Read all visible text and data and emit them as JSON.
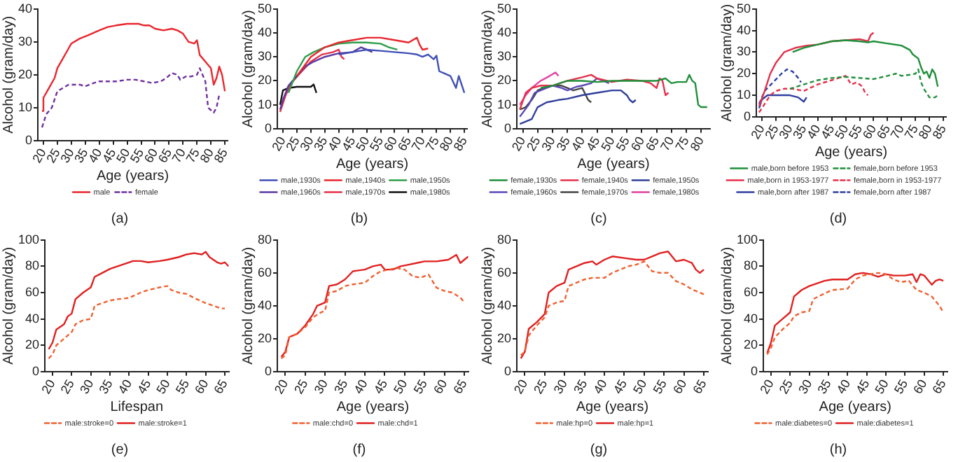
{
  "chart_data": [
    {
      "type": "line",
      "xlabel": "Age (years)",
      "ylabel": "Alcohol (gram/day)",
      "xlim": [
        18,
        86
      ],
      "xticks": [
        20,
        25,
        30,
        35,
        40,
        45,
        50,
        55,
        60,
        65,
        70,
        75,
        80,
        85
      ],
      "ylim": [
        0,
        40
      ],
      "yticks": [
        0,
        10,
        20,
        30,
        40
      ],
      "legend": "bottom",
      "annotations": [
        "(a)"
      ],
      "series": [
        {
          "name": "male",
          "color": "#e8262d",
          "line_style": "solid",
          "x": [
            19.5,
            20,
            22,
            24,
            25,
            27,
            29,
            30,
            33,
            36,
            40,
            43,
            46,
            50,
            54,
            56,
            58,
            60,
            63,
            66,
            68,
            70,
            72,
            74,
            75,
            76,
            78,
            80,
            81,
            82,
            83,
            84,
            85
          ],
          "values": [
            9,
            13,
            16,
            19,
            22,
            25,
            28,
            29.5,
            31,
            32,
            33.5,
            34.5,
            35,
            35.5,
            35.5,
            35,
            35,
            34,
            33.5,
            34,
            33.5,
            32.5,
            30,
            29.5,
            30.5,
            26,
            24,
            22,
            17,
            19,
            22.5,
            20,
            15
          ]
        },
        {
          "name": "female",
          "color": "#7030a0",
          "line_style": "dashed",
          "x": [
            19.5,
            21,
            23,
            25,
            27,
            29,
            31,
            33,
            35,
            38,
            40,
            43,
            46,
            50,
            53,
            56,
            59,
            62,
            64,
            66,
            68,
            69,
            71,
            73,
            75,
            76,
            77,
            78,
            79,
            81,
            82,
            83
          ],
          "values": [
            4,
            8,
            10,
            15,
            16,
            17,
            17,
            17,
            16.5,
            17.5,
            18,
            18,
            18,
            18.5,
            18.5,
            18,
            17.5,
            18,
            19,
            20.5,
            20,
            18.5,
            19.5,
            19.5,
            20,
            22,
            20,
            18,
            10,
            8.5,
            10,
            14
          ]
        }
      ]
    },
    {
      "type": "line",
      "xlabel": "Age (years)",
      "ylabel": "Alcohol (gram/day)",
      "xlim": [
        18,
        86
      ],
      "xticks": [
        20,
        25,
        30,
        35,
        40,
        45,
        50,
        55,
        60,
        65,
        70,
        75,
        80,
        85
      ],
      "ylim": [
        0,
        50
      ],
      "yticks": [
        0,
        10,
        20,
        30,
        40,
        50
      ],
      "legend": "bottom",
      "annotations": [
        "(b)"
      ],
      "series": [
        {
          "name": "male,1930s",
          "color": "#3f4fb5",
          "line_style": "solid",
          "x": [
            40,
            45,
            50,
            55,
            60,
            65,
            68,
            70,
            72,
            74,
            75,
            76,
            78,
            80,
            82,
            83,
            85
          ],
          "values": [
            31,
            32,
            33,
            32.5,
            32,
            31.5,
            31,
            30,
            31,
            29,
            30.5,
            24,
            23,
            22,
            17,
            22,
            15
          ]
        },
        {
          "name": "male,1940s",
          "color": "#e8262d",
          "line_style": "solid",
          "x": [
            25,
            30,
            35,
            40,
            45,
            50,
            55,
            60,
            65,
            68,
            69,
            70,
            72
          ],
          "values": [
            22,
            30,
            34,
            36,
            37,
            38,
            38,
            37,
            36,
            38,
            35,
            33,
            33.5
          ]
        },
        {
          "name": "male,1950s",
          "color": "#2e9e4a",
          "line_style": "solid",
          "x": [
            22,
            25,
            28,
            31,
            35,
            40,
            45,
            50,
            55,
            58,
            61
          ],
          "values": [
            15,
            24,
            30,
            32,
            34,
            35.5,
            36,
            36,
            35.5,
            34,
            33
          ]
        },
        {
          "name": "male,1960s",
          "color": "#5b3aa0",
          "line_style": "solid",
          "x": [
            19,
            20,
            22,
            25,
            28,
            31,
            35,
            40,
            45,
            48,
            50,
            52
          ],
          "values": [
            8,
            12,
            18,
            22,
            26,
            28,
            30,
            31.5,
            32,
            34,
            33,
            32
          ]
        },
        {
          "name": "male,1970s",
          "color": "#e5304a",
          "line_style": "solid",
          "x": [
            19,
            21,
            23,
            26,
            30,
            34,
            38,
            40,
            41,
            42
          ],
          "values": [
            7,
            14,
            19,
            23,
            28,
            31,
            32,
            33,
            30,
            29
          ]
        },
        {
          "name": "male,1980s",
          "color": "#111111",
          "line_style": "solid",
          "x": [
            19,
            20,
            22,
            25,
            28,
            30,
            31,
            32
          ],
          "values": [
            10,
            16,
            17,
            17.5,
            17.5,
            17.5,
            18.5,
            15
          ]
        }
      ]
    },
    {
      "type": "line",
      "xlabel": "Age (years)",
      "ylabel": "Alcohol (gram/day)",
      "xlim": [
        18,
        83
      ],
      "xticks": [
        20,
        25,
        30,
        35,
        40,
        45,
        50,
        55,
        60,
        65,
        70,
        75,
        80
      ],
      "ylim": [
        0,
        50
      ],
      "yticks": [
        0,
        10,
        20,
        30,
        40,
        50
      ],
      "legend": "bottom",
      "annotations": [
        "(c)"
      ],
      "series": [
        {
          "name": "female,1930s",
          "color": "#1f8f3a",
          "line_style": "solid",
          "x": [
            26,
            30,
            35,
            40,
            45,
            50,
            55,
            60,
            65,
            68,
            70,
            72,
            75,
            76,
            77,
            78,
            79,
            80,
            82
          ],
          "values": [
            17,
            18,
            20,
            20,
            19.5,
            20,
            20,
            20,
            20,
            21,
            19,
            19.5,
            19.5,
            22.5,
            20,
            19,
            10,
            9,
            9
          ]
        },
        {
          "name": "female,1940s",
          "color": "#e5304a",
          "line_style": "solid",
          "x": [
            19,
            21,
            23,
            26,
            30,
            35,
            40,
            43,
            45,
            50,
            55,
            60,
            63,
            65,
            66,
            67,
            68,
            69
          ],
          "values": [
            8,
            15,
            17,
            18,
            18,
            20,
            21.5,
            22.5,
            21,
            19.5,
            20.5,
            20,
            19,
            17,
            21,
            20,
            14,
            15
          ]
        },
        {
          "name": "female,1950s",
          "color": "#2f3f9a",
          "line_style": "solid",
          "x": [
            19,
            21,
            23,
            25,
            28,
            32,
            35,
            40,
            45,
            50,
            53,
            55,
            56,
            57,
            58
          ],
          "values": [
            2,
            3,
            4,
            9,
            11,
            12,
            12.5,
            14,
            15,
            16,
            16,
            14,
            12,
            11,
            12
          ]
        },
        {
          "name": "female,1960s",
          "color": "#5a4ab8",
          "line_style": "solid",
          "x": [
            19,
            22,
            24,
            27,
            30,
            33,
            35,
            38,
            40,
            43,
            45,
            47,
            49
          ],
          "values": [
            5,
            10,
            15,
            16.5,
            18,
            17,
            16,
            17.5,
            18,
            19,
            21,
            20,
            19
          ]
        },
        {
          "name": "female,1970s",
          "color": "#444444",
          "line_style": "solid",
          "x": [
            19,
            21,
            23,
            25,
            27,
            30,
            33,
            35,
            37,
            40,
            42,
            43
          ],
          "values": [
            8,
            9,
            12,
            16,
            17,
            18,
            18,
            17,
            16,
            17,
            12,
            11
          ]
        },
        {
          "name": "female,1980s",
          "color": "#e040a0",
          "line_style": "solid",
          "x": [
            19,
            21,
            23,
            26,
            29,
            31,
            32
          ],
          "values": [
            10,
            14,
            17,
            20,
            22,
            23.5,
            22
          ]
        }
      ]
    },
    {
      "type": "line",
      "xlabel": "Age (years)",
      "ylabel": "Alcohol (gram/day)",
      "xlim": [
        18,
        86
      ],
      "xticks": [
        20,
        25,
        30,
        35,
        40,
        45,
        50,
        55,
        60,
        65,
        70,
        75,
        80,
        85
      ],
      "ylim": [
        0,
        50
      ],
      "yticks": [
        0,
        10,
        20,
        30,
        40,
        50
      ],
      "legend": "bottom",
      "annotations": [
        "(d)"
      ],
      "series": [
        {
          "name": "male,born before 1953",
          "color": "#1f8f3a",
          "line_style": "solid",
          "x": [
            31,
            35,
            40,
            45,
            50,
            55,
            58,
            60,
            65,
            70,
            73,
            74,
            76,
            77,
            78,
            79,
            80,
            81,
            82,
            83
          ],
          "values": [
            30,
            32,
            33.5,
            35,
            35.5,
            35,
            34.5,
            35,
            34,
            33,
            31,
            29,
            27,
            23,
            20,
            21,
            18,
            22,
            20,
            14
          ]
        },
        {
          "name": "female,born before 1953",
          "color": "#1f8f3a",
          "line_style": "dashed",
          "x": [
            30,
            35,
            40,
            45,
            50,
            55,
            60,
            65,
            68,
            70,
            73,
            75,
            76,
            77,
            78,
            80,
            82,
            83
          ],
          "values": [
            13,
            15,
            17,
            18,
            18.5,
            18,
            17.5,
            19,
            20,
            19,
            19.5,
            20,
            22,
            16,
            13,
            9,
            9,
            10
          ]
        },
        {
          "name": "male,born in 1953-1977",
          "color": "#e5304a",
          "line_style": "solid",
          "x": [
            19,
            21,
            23,
            25,
            28,
            32,
            36,
            40,
            45,
            50,
            55,
            58,
            59,
            60
          ],
          "values": [
            5,
            12,
            20,
            25,
            30,
            32,
            33,
            33.5,
            35,
            35.5,
            36,
            35,
            38,
            39
          ]
        },
        {
          "name": "female,born in 1953-1977",
          "color": "#e5304a",
          "line_style": "dashed",
          "x": [
            19,
            21,
            23,
            25,
            28,
            31,
            35,
            40,
            45,
            50,
            52,
            54,
            56,
            57,
            58
          ],
          "values": [
            2,
            6,
            10,
            12,
            13,
            13,
            12,
            15,
            17,
            19,
            15,
            16,
            14,
            11,
            10
          ]
        },
        {
          "name": "male,born after 1987",
          "color": "#2f3fa0",
          "line_style": "solid",
          "x": [
            19,
            20,
            22,
            26,
            30,
            33,
            35,
            36
          ],
          "values": [
            4,
            8,
            10,
            10,
            10,
            9,
            7,
            9
          ]
        },
        {
          "name": "female,born after 1987",
          "color": "#2f3fa0",
          "line_style": "dashed",
          "x": [
            19,
            21,
            24,
            27,
            29,
            31,
            33,
            34
          ],
          "values": [
            6,
            12,
            16,
            20,
            22,
            21,
            18,
            16
          ]
        }
      ]
    },
    {
      "type": "line",
      "xlabel": "Lifespan",
      "ylabel": "Alcohol (gram/day)",
      "xlim": [
        18,
        66
      ],
      "xticks": [
        20,
        25,
        30,
        35,
        40,
        45,
        50,
        55,
        60,
        65
      ],
      "ylim": [
        0,
        100
      ],
      "yticks": [
        0,
        20,
        40,
        60,
        80,
        100
      ],
      "legend": "bottom",
      "annotations": [
        "(e)"
      ],
      "series": [
        {
          "name": "male:stroke=0",
          "color": "#f06030",
          "line_style": "dashed",
          "x": [
            19,
            20,
            21,
            23,
            25,
            26,
            28,
            30,
            31,
            33,
            35,
            37,
            40,
            43,
            45,
            48,
            50,
            51,
            53,
            55,
            57,
            60,
            62,
            64,
            65
          ],
          "values": [
            10,
            13,
            20,
            25,
            30,
            36,
            39,
            40,
            50,
            52,
            54,
            55,
            56,
            60,
            62,
            64,
            65,
            62,
            60,
            59,
            56,
            52,
            50,
            48,
            48
          ]
        },
        {
          "name": "male:stroke=1",
          "color": "#e02020",
          "line_style": "solid",
          "x": [
            19,
            20,
            21,
            23,
            24,
            25,
            26,
            28,
            30,
            31,
            33,
            35,
            37,
            40,
            41,
            43,
            45,
            48,
            50,
            53,
            55,
            57,
            59,
            60,
            61,
            63,
            64,
            65,
            66
          ],
          "values": [
            17,
            22,
            32,
            36,
            42,
            44,
            55,
            60,
            64,
            72,
            75,
            78,
            80,
            83,
            84,
            84,
            83,
            84,
            85,
            87,
            89,
            90,
            89,
            91,
            87,
            83,
            82,
            83,
            80
          ]
        }
      ]
    },
    {
      "type": "line",
      "xlabel": "Age (years)",
      "ylabel": "Alcohol (gram/day)",
      "xlim": [
        18,
        66
      ],
      "xticks": [
        20,
        25,
        30,
        35,
        40,
        45,
        50,
        55,
        60,
        65
      ],
      "ylim": [
        0,
        80
      ],
      "yticks": [
        0,
        20,
        40,
        60,
        80
      ],
      "legend": "bottom",
      "annotations": [
        "(f)"
      ],
      "series": [
        {
          "name": "male:chd=0",
          "color": "#f06030",
          "line_style": "dashed",
          "x": [
            19,
            20,
            21,
            23,
            25,
            27,
            29,
            30,
            31,
            33,
            35,
            37,
            40,
            42,
            44,
            46,
            48,
            50,
            52,
            54,
            56,
            58,
            60,
            62,
            64,
            65
          ],
          "values": [
            8,
            10,
            21,
            23,
            27,
            33,
            36,
            37,
            48,
            49,
            52,
            53,
            54,
            58,
            61,
            62,
            63,
            62,
            58,
            57,
            59,
            51,
            49,
            48,
            45,
            42
          ]
        },
        {
          "name": "male:chd=1",
          "color": "#e02020",
          "line_style": "solid",
          "x": [
            19,
            20,
            21,
            23,
            25,
            27,
            28,
            30,
            31,
            33,
            35,
            37,
            40,
            42,
            44,
            45,
            47,
            49,
            51,
            53,
            55,
            58,
            61,
            63,
            64,
            65,
            66
          ],
          "values": [
            9,
            12,
            21,
            23,
            28,
            35,
            40,
            42,
            52,
            53,
            56,
            61,
            62,
            64,
            65,
            62,
            62,
            64,
            65,
            66,
            67,
            67,
            68,
            71,
            66,
            68,
            70
          ]
        }
      ]
    },
    {
      "type": "line",
      "xlabel": "Age (years)",
      "ylabel": "Alcohol (gram/day)",
      "xlim": [
        18,
        66
      ],
      "xticks": [
        20,
        25,
        30,
        35,
        40,
        45,
        50,
        55,
        60,
        65
      ],
      "ylim": [
        0,
        80
      ],
      "yticks": [
        0,
        20,
        40,
        60,
        80
      ],
      "legend": "bottom",
      "annotations": [
        "(g)"
      ],
      "series": [
        {
          "name": "male:hp=0",
          "color": "#f06030",
          "line_style": "dashed",
          "x": [
            19,
            20,
            21,
            23,
            25,
            26,
            28,
            30,
            31,
            33,
            35,
            37,
            40,
            42,
            44,
            46,
            48,
            50,
            52,
            54,
            56,
            58,
            60,
            62,
            64,
            65
          ],
          "values": [
            10,
            12,
            22,
            28,
            33,
            40,
            42,
            43,
            52,
            54,
            56,
            57,
            57,
            60,
            62,
            64,
            65,
            67,
            61,
            60,
            60,
            55,
            53,
            50,
            48,
            47
          ]
        },
        {
          "name": "male:hp=1",
          "color": "#e02020",
          "line_style": "solid",
          "x": [
            19,
            20,
            21,
            23,
            25,
            26,
            28,
            30,
            31,
            33,
            35,
            37,
            38,
            40,
            42,
            45,
            48,
            50,
            52,
            54,
            56,
            57,
            58,
            60,
            62,
            63,
            64,
            65
          ],
          "values": [
            8,
            12,
            26,
            30,
            35,
            48,
            52,
            54,
            62,
            64,
            66,
            67,
            65,
            68,
            70,
            69,
            68,
            68,
            70,
            72,
            73,
            70,
            67,
            68,
            66,
            62,
            60,
            62
          ]
        }
      ]
    },
    {
      "type": "line",
      "xlabel": "Age (years)",
      "ylabel": "Alcohol (gram/day)",
      "xlim": [
        18,
        66
      ],
      "xticks": [
        20,
        25,
        30,
        35,
        40,
        45,
        50,
        55,
        60,
        65
      ],
      "ylim": [
        0,
        100
      ],
      "yticks": [
        0,
        20,
        40,
        60,
        80,
        100
      ],
      "legend": "bottom",
      "annotations": [
        "(h)"
      ],
      "series": [
        {
          "name": "male:diabetes=0",
          "color": "#f06030",
          "line_style": "dashed",
          "x": [
            19,
            20,
            21,
            23,
            25,
            26,
            28,
            30,
            31,
            33,
            36,
            40,
            42,
            44,
            46,
            48,
            50,
            52,
            54,
            56,
            58,
            60,
            62,
            64,
            65
          ],
          "values": [
            13,
            18,
            26,
            32,
            37,
            42,
            45,
            46,
            55,
            58,
            62,
            63,
            70,
            73,
            74,
            75,
            74,
            70,
            68,
            69,
            62,
            60,
            57,
            50,
            45
          ]
        },
        {
          "name": "male:diabetes=1",
          "color": "#e02020",
          "line_style": "solid",
          "x": [
            19,
            20,
            21,
            23,
            25,
            26,
            28,
            30,
            32,
            34,
            36,
            40,
            42,
            44,
            46,
            48,
            50,
            52,
            55,
            57,
            58,
            59,
            60,
            62,
            63,
            64,
            65
          ],
          "values": [
            14,
            22,
            35,
            40,
            45,
            57,
            62,
            65,
            67,
            69,
            70,
            70,
            74,
            75,
            74,
            72,
            74,
            73,
            73,
            74,
            68,
            74,
            73,
            66,
            69,
            70,
            69
          ]
        }
      ]
    }
  ]
}
